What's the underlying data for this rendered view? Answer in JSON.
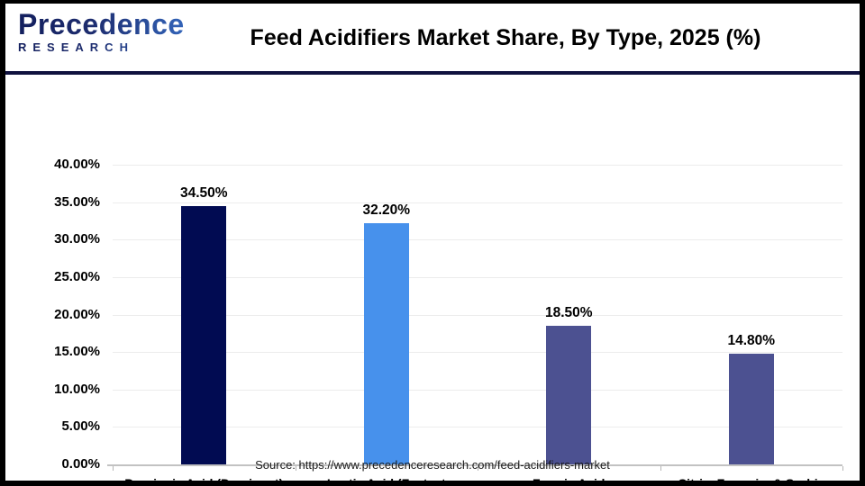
{
  "header": {
    "logo_line1": "Precedence",
    "logo_line2": "RESEARCH",
    "title": "Feed Acidifiers Market Share, By Type, 2025 (%)"
  },
  "chart_data": {
    "type": "bar",
    "title": "Feed Acidifiers Market Share, By Type, 2025 (%)",
    "categories": [
      "Propionic Acid (Dominant)",
      "Lactic Acid (Fastest Growing)",
      "Formic Acid",
      "Citric, Fumaric, & Sorbic Acids"
    ],
    "values": [
      34.5,
      32.2,
      18.5,
      14.8
    ],
    "value_labels": [
      "34.50%",
      "32.20%",
      "18.50%",
      "14.80%"
    ],
    "bar_colors": [
      "#010b52",
      "#4791ec",
      "#4c5191",
      "#4c5191"
    ],
    "xlabel": "",
    "ylabel": "",
    "ylim": [
      0,
      40
    ],
    "ytick_labels": [
      "40.00%",
      "35.00%",
      "30.00%",
      "25.00%",
      "20.00%",
      "15.00%",
      "10.00%",
      "5.00%",
      "0.00%"
    ],
    "grid": true,
    "legend_position": "none"
  },
  "footer": {
    "source": "Source: https://www.precedenceresearch.com/feed-acidifiers-market"
  },
  "colors": {
    "divider": "#10123f",
    "gridline": "#ececec",
    "axis_line": "#c2c2c2",
    "logo_dark": "#131f5e",
    "logo_light": "#3c7cd9"
  }
}
